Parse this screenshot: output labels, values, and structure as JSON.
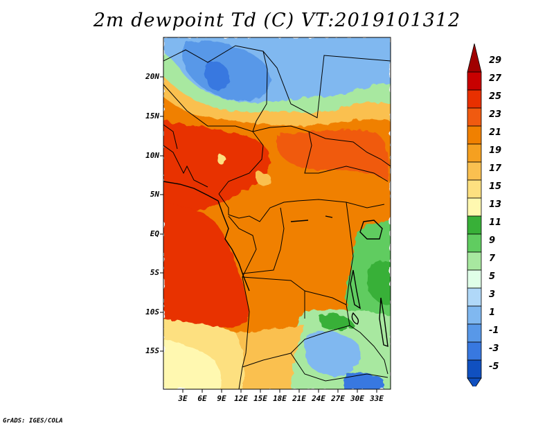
{
  "title": "2m dewpoint Td (C) VT:2019101312",
  "lat_labels": [
    "20N",
    "15N",
    "10N",
    "5N",
    "EQ",
    "5S",
    "10S",
    "15S"
  ],
  "lon_labels": [
    "3E",
    "6E",
    "9E",
    "12E",
    "15E",
    "18E",
    "21E",
    "24E",
    "27E",
    "30E",
    "33E"
  ],
  "colorbar": {
    "labels": [
      "29",
      "27",
      "25",
      "23",
      "21",
      "19",
      "17",
      "15",
      "13",
      "11",
      "9",
      "7",
      "5",
      "3",
      "1",
      "-1",
      "-3",
      "-5"
    ],
    "colors": [
      "#a00000",
      "#c80000",
      "#e83000",
      "#f05a10",
      "#f08000",
      "#f5a020",
      "#fac050",
      "#fde080",
      "#fff8b0",
      "#38b038",
      "#60cc60",
      "#a8e8a0",
      "#e0ffe8",
      "#b0d8f8",
      "#80b8f0",
      "#5898e8",
      "#3878e0",
      "#1050c0"
    ]
  },
  "credit": "GrADS: IGES/COLA"
}
